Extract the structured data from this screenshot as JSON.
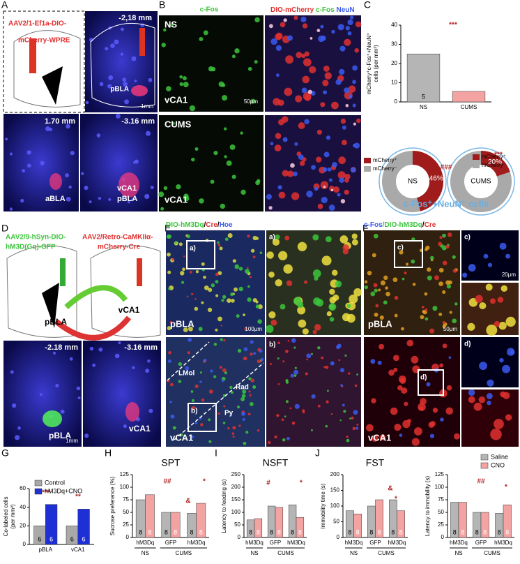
{
  "panels": {
    "A": {
      "letter": "A",
      "vector": [
        "AAV2/1-Ef1a-DIO-",
        "mCherry-WPRE"
      ],
      "coords": [
        "-2,18 mm",
        "1.70 mm",
        "-3.16 mm"
      ],
      "labels": [
        "pBLA",
        "aBLA",
        "vCA1",
        "pBLA"
      ],
      "scale": "1mm"
    },
    "B": {
      "letter": "B",
      "stain1": "c-Fos",
      "stain2": [
        "DIO-mCherry",
        "/",
        "c-Fos",
        "/",
        "NeuN"
      ],
      "groups": [
        "NS",
        "CUMS"
      ],
      "regions": [
        "vCA1",
        "vCA1"
      ],
      "scale": "50μm"
    },
    "C": {
      "letter": "C"
    },
    "D": {
      "letter": "D",
      "vector1": [
        "AAV2/9-hSyn-DIO-",
        "hM3D(Gq)-GFP"
      ],
      "vector2": [
        "AAV2/Retro-CaMKIIα-",
        "mCherry-Cre"
      ],
      "labels": [
        "pBLA",
        "vCA1",
        "pBLA",
        "vCA1"
      ],
      "coords": [
        "-2.18 mm",
        "-3.16 mm"
      ],
      "scale": "1mm"
    },
    "E": {
      "letter": "E",
      "stain": [
        "DIO-hM3Dq",
        "/",
        "Cre",
        "/",
        "Hoe"
      ],
      "insets": [
        "a)",
        "b)",
        "a)",
        "b)"
      ],
      "regions": [
        "pBLA",
        "vCA1"
      ],
      "layers": [
        "LMol",
        "Rad",
        "Py"
      ],
      "scale": "100μm"
    },
    "F": {
      "letter": "F",
      "stain": [
        "c-Fos",
        "/",
        "DIO-hM3Dq",
        "/",
        "Cre"
      ],
      "insets": [
        "c)",
        "d)",
        "c)",
        "d)"
      ],
      "regions": [
        "pBLA",
        "vCA1"
      ],
      "scale": [
        "50μm",
        "20μm"
      ]
    },
    "G": {
      "letter": "G"
    },
    "H": {
      "letter": "H"
    },
    "I": {
      "letter": "I"
    },
    "J": {
      "letter": "J"
    }
  },
  "chart_data": [
    {
      "type": "bar",
      "categories": [
        "NS",
        "CUMS"
      ],
      "values": [
        25,
        5.5
      ],
      "colors": [
        "#b5b5b5",
        "#f4a3a3"
      ],
      "n": [
        5,
        null
      ],
      "ylim": [
        0,
        40
      ],
      "yticks": [
        0,
        10,
        20,
        30,
        40
      ],
      "ylabel": [
        "mCherry⁺c-Fos⁺+NeuN⁺",
        "cells (per mm²)"
      ],
      "annotations": [
        "***"
      ]
    },
    {
      "type": "donut",
      "categories": [
        "mCherry⁺",
        "mCherry⁻"
      ],
      "colors": [
        "#a01c1c",
        "#a9a9a9"
      ],
      "series": [
        {
          "name": "NS",
          "values": [
            46,
            54
          ],
          "value_labels": [
            "46%",
            null
          ]
        },
        {
          "name": "CUMS",
          "values": [
            20,
            80
          ],
          "value_labels": [
            "20%",
            null
          ]
        }
      ],
      "annotations": [
        "###",
        "***"
      ],
      "caption": "c-Fos⁺+NeuN⁺ cells"
    },
    {
      "type": "bar",
      "categories": [
        "pBLA",
        "vCA1"
      ],
      "legend": true,
      "series": [
        {
          "name": "Control",
          "color": "#a9a9a9",
          "values": [
            20,
            20
          ],
          "n": [
            6,
            6
          ]
        },
        {
          "name": "hM3Dq+CNO",
          "color": "#1f2fd6",
          "values": [
            43,
            38
          ],
          "n": [
            6,
            6
          ]
        }
      ],
      "ylim": [
        0,
        60
      ],
      "yticks": [
        0,
        20,
        40,
        60
      ],
      "ylabel": [
        "Co-labeled cells",
        "(per mm²)"
      ],
      "annotations": [
        "***",
        "**"
      ]
    },
    {
      "type": "bar",
      "title": "SPT",
      "categories": [
        "hM3Dq",
        "GFP",
        "hM3Dq"
      ],
      "groups": [
        "NS",
        "CUMS"
      ],
      "series": [
        {
          "color": "#b5b5b5",
          "values": [
            75,
            50,
            48
          ],
          "n": [
            8,
            8,
            8
          ]
        },
        {
          "color": "#f4a3a3",
          "values": [
            85,
            50,
            68
          ],
          "n": [
            8,
            8,
            8
          ]
        }
      ],
      "ylim": [
        0,
        125
      ],
      "yticks": [
        0,
        25,
        50,
        75,
        100,
        125
      ],
      "ylabel": "Sucrose preference (%)",
      "annotations": [
        "##",
        "&",
        "*"
      ]
    },
    {
      "type": "bar",
      "title": "NSFT",
      "categories": [
        "hM3Dq",
        "GFP",
        "hM3Dq"
      ],
      "groups": [
        "NS",
        "CUMS"
      ],
      "series": [
        {
          "color": "#b5b5b5",
          "values": [
            70,
            125,
            130
          ],
          "n": [
            8,
            8,
            8
          ]
        },
        {
          "color": "#f4a3a3",
          "values": [
            75,
            120,
            80
          ],
          "n": [
            8,
            8,
            8
          ]
        }
      ],
      "ylim": [
        0,
        250
      ],
      "yticks": [
        0,
        50,
        100,
        150,
        200,
        250
      ],
      "ylabel": "Latency to feeding (s)",
      "annotations": [
        "#",
        "*"
      ]
    },
    {
      "type": "bar",
      "title": "FST",
      "categories": [
        "hM3Dq",
        "GFP",
        "hM3Dq"
      ],
      "groups": [
        "NS",
        "CUMS"
      ],
      "series": [
        {
          "color": "#b5b5b5",
          "values": [
            85,
            100,
            120
          ],
          "n": [
            8,
            8,
            8
          ]
        },
        {
          "color": "#f4a3a3",
          "values": [
            75,
            120,
            85
          ],
          "n": [
            8,
            8,
            8
          ]
        }
      ],
      "ylim": [
        0,
        200
      ],
      "yticks": [
        0,
        50,
        100,
        150,
        200
      ],
      "ylabel": "Immobility time (s)",
      "annotations": [
        "&",
        "*"
      ]
    },
    {
      "type": "bar",
      "categories": [
        "hM3Dq",
        "GFP",
        "hM3Dq"
      ],
      "groups": [
        "NS",
        "CUMS"
      ],
      "legend": true,
      "series": [
        {
          "name": "Saline",
          "color": "#b5b5b5",
          "values": [
            70,
            50,
            48
          ],
          "n": [
            8,
            8,
            8
          ]
        },
        {
          "name": "CNO",
          "color": "#f4a3a3",
          "values": [
            70,
            50,
            65
          ],
          "n": [
            8,
            8,
            8
          ]
        }
      ],
      "ylim": [
        0,
        125
      ],
      "yticks": [
        0,
        25,
        50,
        75,
        100,
        125
      ],
      "ylabel": "Latency to immobility (s)",
      "annotations": [
        "##",
        "*"
      ]
    }
  ]
}
